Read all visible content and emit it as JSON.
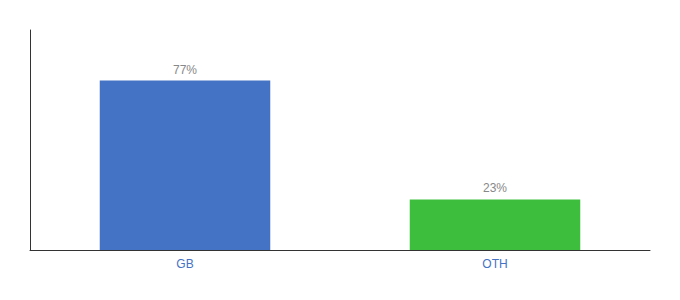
{
  "chart_data": {
    "type": "bar",
    "categories": [
      "GB",
      "OTH"
    ],
    "values": [
      77,
      23
    ],
    "value_labels": [
      "77%",
      "23%"
    ],
    "colors": [
      "#4472C4",
      "#3DBF3D"
    ],
    "ylim": [
      0,
      100
    ],
    "yticks": [],
    "tick_labels": "x",
    "data_labels": true,
    "grid": false
  }
}
